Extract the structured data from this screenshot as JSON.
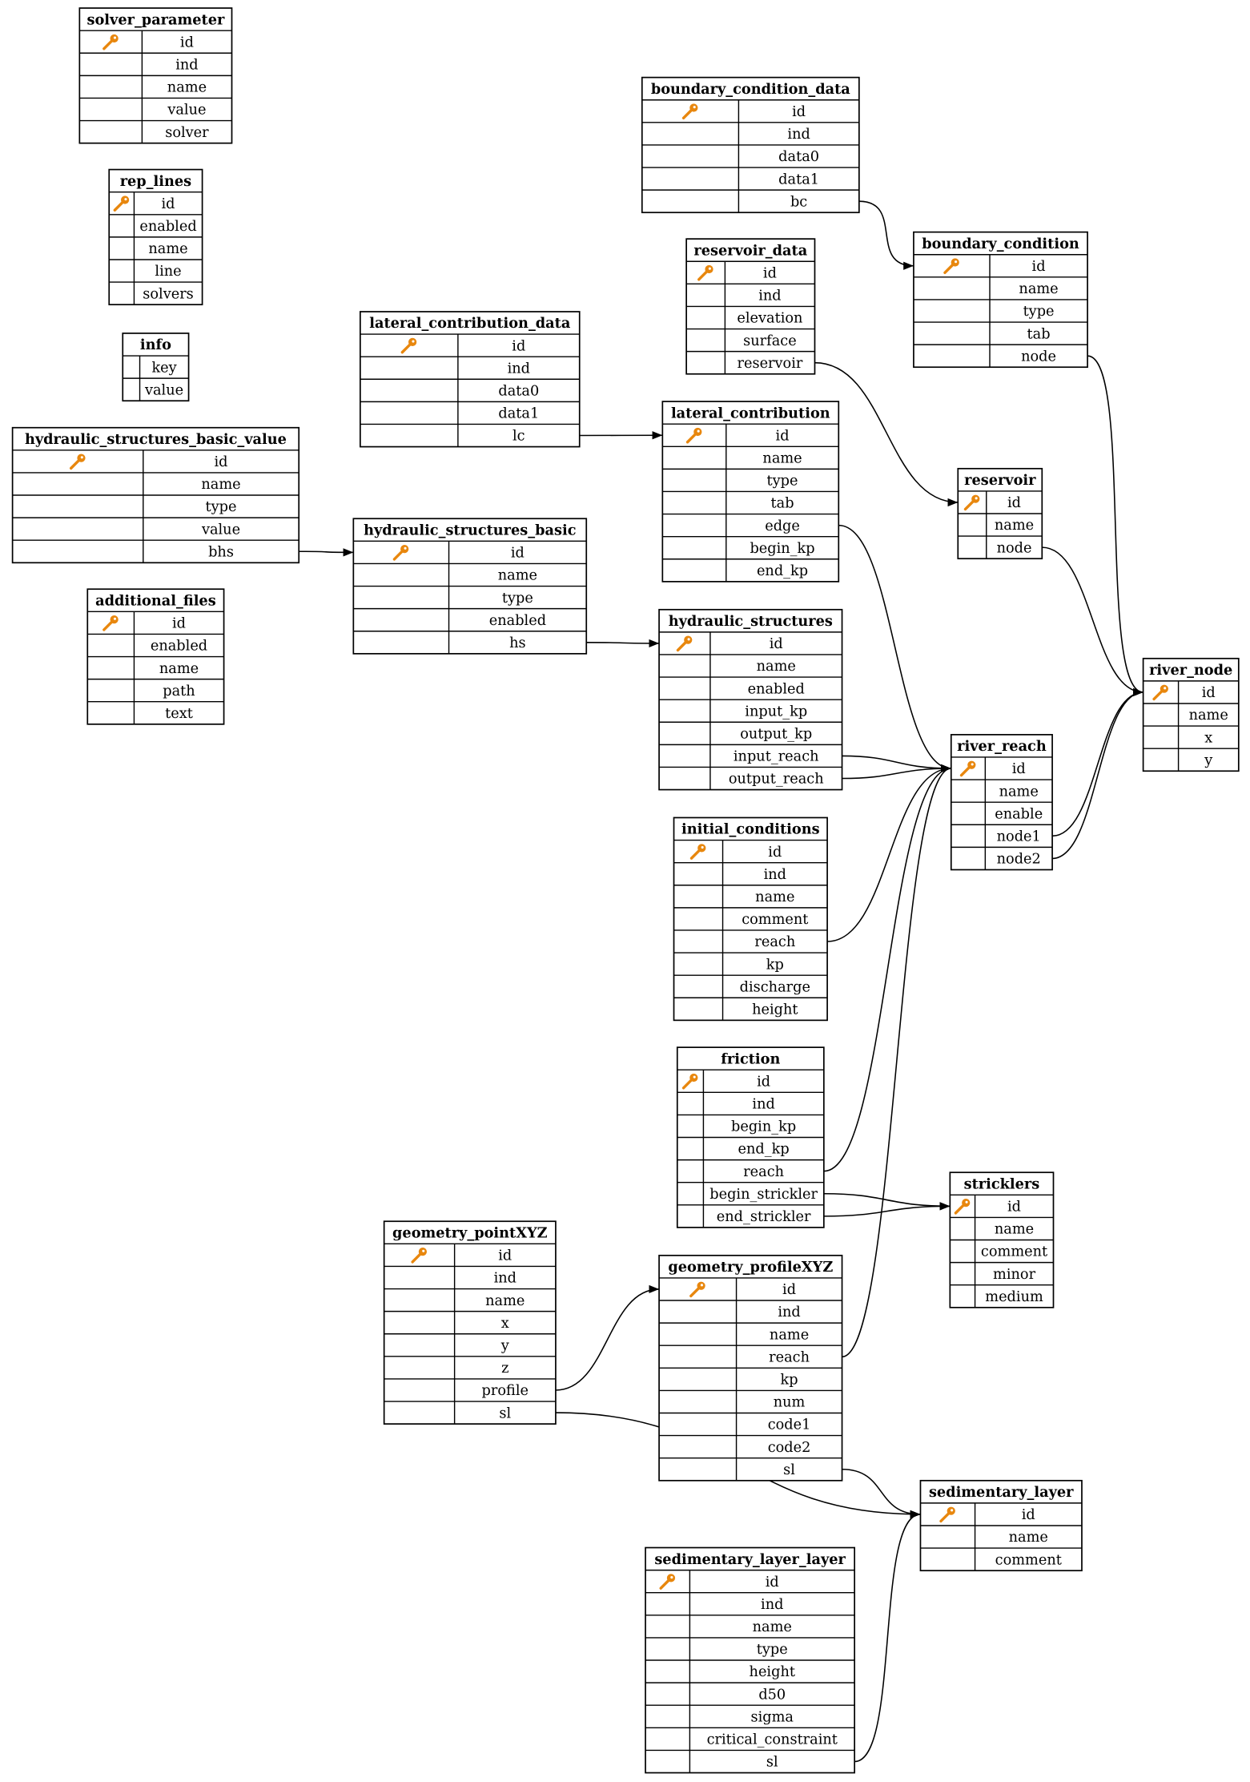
{
  "colors": {
    "key_icon": "#e8870e",
    "line": "#000000",
    "background": "#ffffff"
  },
  "tables": [
    {
      "name": "solver_parameter",
      "primary_key": "id",
      "columns": [
        "id",
        "ind",
        "name",
        "value",
        "solver"
      ]
    },
    {
      "name": "rep_lines",
      "primary_key": "id",
      "columns": [
        "id",
        "enabled",
        "name",
        "line",
        "solvers"
      ]
    },
    {
      "name": "info",
      "primary_key": null,
      "columns": [
        "key",
        "value"
      ]
    },
    {
      "name": "hydraulic_structures_basic_value",
      "primary_key": "id",
      "columns": [
        "id",
        "name",
        "type",
        "value",
        "bhs"
      ]
    },
    {
      "name": "additional_files",
      "primary_key": "id",
      "columns": [
        "id",
        "enabled",
        "name",
        "path",
        "text"
      ]
    },
    {
      "name": "boundary_condition_data",
      "primary_key": "id",
      "columns": [
        "id",
        "ind",
        "data0",
        "data1",
        "bc"
      ]
    },
    {
      "name": "reservoir_data",
      "primary_key": "id",
      "columns": [
        "id",
        "ind",
        "elevation",
        "surface",
        "reservoir"
      ]
    },
    {
      "name": "boundary_condition",
      "primary_key": "id",
      "columns": [
        "id",
        "name",
        "type",
        "tab",
        "node"
      ]
    },
    {
      "name": "lateral_contribution_data",
      "primary_key": "id",
      "columns": [
        "id",
        "ind",
        "data0",
        "data1",
        "lc"
      ]
    },
    {
      "name": "lateral_contribution",
      "primary_key": "id",
      "columns": [
        "id",
        "name",
        "type",
        "tab",
        "edge",
        "begin_kp",
        "end_kp"
      ]
    },
    {
      "name": "reservoir",
      "primary_key": "id",
      "columns": [
        "id",
        "name",
        "node"
      ]
    },
    {
      "name": "hydraulic_structures_basic",
      "primary_key": "id",
      "columns": [
        "id",
        "name",
        "type",
        "enabled",
        "hs"
      ]
    },
    {
      "name": "hydraulic_structures",
      "primary_key": "id",
      "columns": [
        "id",
        "name",
        "enabled",
        "input_kp",
        "output_kp",
        "input_reach",
        "output_reach"
      ]
    },
    {
      "name": "river_node",
      "primary_key": "id",
      "columns": [
        "id",
        "name",
        "x",
        "y"
      ]
    },
    {
      "name": "river_reach",
      "primary_key": "id",
      "columns": [
        "id",
        "name",
        "enable",
        "node1",
        "node2"
      ]
    },
    {
      "name": "initial_conditions",
      "primary_key": "id",
      "columns": [
        "id",
        "ind",
        "name",
        "comment",
        "reach",
        "kp",
        "discharge",
        "height"
      ]
    },
    {
      "name": "friction",
      "primary_key": "id",
      "columns": [
        "id",
        "ind",
        "begin_kp",
        "end_kp",
        "reach",
        "begin_strickler",
        "end_strickler"
      ]
    },
    {
      "name": "stricklers",
      "primary_key": "id",
      "columns": [
        "id",
        "name",
        "comment",
        "minor",
        "medium"
      ]
    },
    {
      "name": "geometry_pointXYZ",
      "primary_key": "id",
      "columns": [
        "id",
        "ind",
        "name",
        "x",
        "y",
        "z",
        "profile",
        "sl"
      ]
    },
    {
      "name": "geometry_profileXYZ",
      "primary_key": "id",
      "columns": [
        "id",
        "ind",
        "name",
        "reach",
        "kp",
        "num",
        "code1",
        "code2",
        "sl"
      ]
    },
    {
      "name": "sedimentary_layer",
      "primary_key": "id",
      "columns": [
        "id",
        "name",
        "comment"
      ]
    },
    {
      "name": "sedimentary_layer_layer",
      "primary_key": "id",
      "columns": [
        "id",
        "ind",
        "name",
        "type",
        "height",
        "d50",
        "sigma",
        "critical_constraint",
        "sl"
      ]
    }
  ],
  "relations": [
    {
      "from": "boundary_condition_data.bc",
      "to": "boundary_condition.id"
    },
    {
      "from": "reservoir_data.reservoir",
      "to": "reservoir.id"
    },
    {
      "from": "lateral_contribution_data.lc",
      "to": "lateral_contribution.id"
    },
    {
      "from": "hydraulic_structures_basic_value.bhs",
      "to": "hydraulic_structures_basic.id"
    },
    {
      "from": "hydraulic_structures_basic.hs",
      "to": "hydraulic_structures.id"
    },
    {
      "from": "boundary_condition.node",
      "to": "river_node.id"
    },
    {
      "from": "reservoir.node",
      "to": "river_node.id"
    },
    {
      "from": "river_reach.node1",
      "to": "river_node.id"
    },
    {
      "from": "river_reach.node2",
      "to": "river_node.id"
    },
    {
      "from": "lateral_contribution.edge",
      "to": "river_reach.id"
    },
    {
      "from": "hydraulic_structures.input_reach",
      "to": "river_reach.id"
    },
    {
      "from": "hydraulic_structures.output_reach",
      "to": "river_reach.id"
    },
    {
      "from": "initial_conditions.reach",
      "to": "river_reach.id"
    },
    {
      "from": "friction.reach",
      "to": "river_reach.id"
    },
    {
      "from": "geometry_profileXYZ.reach",
      "to": "river_reach.id"
    },
    {
      "from": "friction.begin_strickler",
      "to": "stricklers.id"
    },
    {
      "from": "friction.end_strickler",
      "to": "stricklers.id"
    },
    {
      "from": "geometry_pointXYZ.profile",
      "to": "geometry_profileXYZ.id"
    },
    {
      "from": "geometry_pointXYZ.sl",
      "to": "sedimentary_layer.id"
    },
    {
      "from": "geometry_profileXYZ.sl",
      "to": "sedimentary_layer.id"
    },
    {
      "from": "sedimentary_layer_layer.sl",
      "to": "sedimentary_layer.id"
    }
  ]
}
